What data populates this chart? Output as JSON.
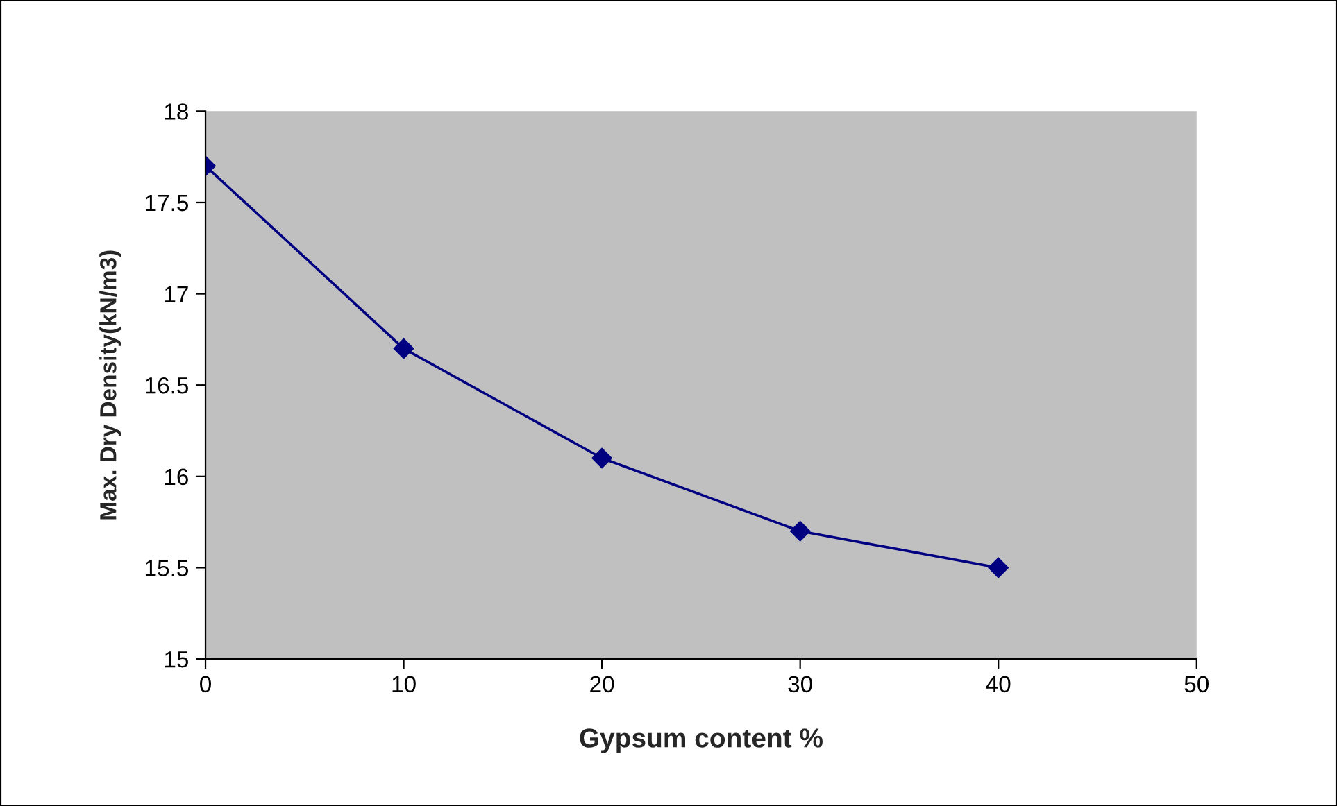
{
  "chart_data": {
    "type": "line",
    "xlabel": "Gypsum content %",
    "ylabel": "Max. Dry Density(kN/m3)",
    "x": [
      0,
      10,
      20,
      30,
      40
    ],
    "series": [
      {
        "color": "#000080",
        "values": [
          17.7,
          16.7,
          16.1,
          15.7,
          15.5
        ]
      }
    ],
    "xlim": [
      0,
      50
    ],
    "xticks": [
      0,
      10,
      20,
      30,
      40,
      50
    ],
    "ylim": [
      15,
      18
    ],
    "yticks": [
      15,
      15.5,
      16,
      16.5,
      17,
      17.5,
      18
    ],
    "grid": false,
    "legend": false,
    "marker": "diamond",
    "line_style": "solid"
  }
}
